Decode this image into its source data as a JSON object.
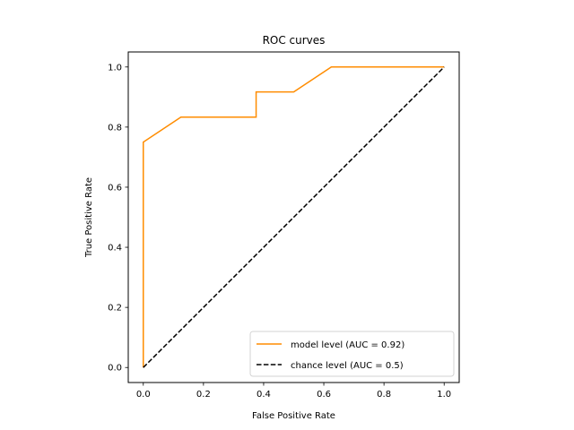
{
  "chart_data": {
    "type": "line",
    "title": "ROC curves",
    "xlabel": "False Positive Rate",
    "ylabel": "True Positive Rate",
    "xlim": [
      -0.05,
      1.05
    ],
    "ylim": [
      -0.05,
      1.05
    ],
    "xticks": [
      0.0,
      0.2,
      0.4,
      0.6,
      0.8,
      1.0
    ],
    "yticks": [
      0.0,
      0.2,
      0.4,
      0.6,
      0.8,
      1.0
    ],
    "tick_labels_x": [
      "0.0",
      "0.2",
      "0.4",
      "0.6",
      "0.8",
      "1.0"
    ],
    "tick_labels_y": [
      "0.0",
      "0.2",
      "0.4",
      "0.6",
      "0.8",
      "1.0"
    ],
    "grid": false,
    "legend_position": "lower-right",
    "series": [
      {
        "name": "model level (AUC = 0.92)",
        "color": "#ff8c00",
        "style": "solid",
        "step": true,
        "x": [
          0.0,
          0.0,
          0.125,
          0.375,
          0.375,
          0.5,
          0.625,
          1.0
        ],
        "y": [
          0.0,
          0.75,
          0.833,
          0.833,
          0.917,
          0.917,
          1.0,
          1.0
        ]
      },
      {
        "name": "chance level (AUC = 0.5)",
        "color": "#000000",
        "style": "dashed",
        "step": false,
        "x": [
          0.0,
          1.0
        ],
        "y": [
          0.0,
          1.0
        ]
      }
    ]
  }
}
